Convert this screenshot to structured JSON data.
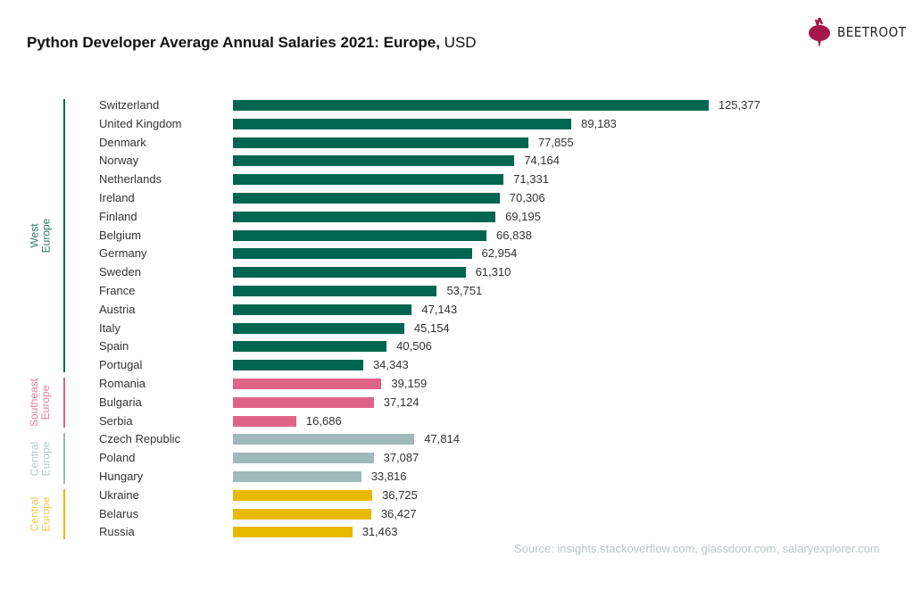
{
  "title": {
    "bold": "Python Developer Average Annual Salaries 2021: Europe,",
    "regular": " USD"
  },
  "logo": {
    "text": "BEETROOT",
    "icon": "beetroot-icon",
    "color": "#A3184A"
  },
  "source": "Source: insights.stackoverflow.com, glassdoor.com, salaryexplorer.com",
  "chart_data": {
    "type": "bar",
    "orientation": "horizontal",
    "title": "Python Developer Average Annual Salaries 2021: Europe, USD",
    "groups": [
      {
        "name": "West Europe",
        "color": "#00664F",
        "label_color": "#2E7A66",
        "categories": [
          "Switzerland",
          "United Kingdom",
          "Denmark",
          "Norway",
          "Netherlands",
          "Ireland",
          "Finland",
          "Belgium",
          "Germany",
          "Sweden",
          "France",
          "Austria",
          "Italy",
          "Spain",
          "Portugal"
        ],
        "values": [
          125377,
          89183,
          77855,
          74164,
          71331,
          70306,
          69195,
          66838,
          62954,
          61310,
          53751,
          47143,
          45154,
          40506,
          34343
        ]
      },
      {
        "name": "Southeast Europe",
        "color": "#E0648A",
        "label_color": "#E07FA0",
        "categories": [
          "Romania",
          "Bulgaria",
          "Serbia"
        ],
        "values": [
          39159,
          37124,
          16686
        ]
      },
      {
        "name": "Central Europe",
        "color": "#9FB8BA",
        "label_color": "#B5C8CB",
        "categories": [
          "Czech Republic",
          "Poland",
          "Hungary"
        ],
        "values": [
          47814,
          37087,
          33816
        ]
      },
      {
        "name": "Central Europe",
        "color": "#E9B800",
        "label_color": "#EDC84A",
        "categories": [
          "Ukraine",
          "Belarus",
          "Russia"
        ],
        "values": [
          36725,
          36427,
          31463
        ]
      }
    ],
    "value_labels": true,
    "grid": false,
    "legend": "none"
  }
}
